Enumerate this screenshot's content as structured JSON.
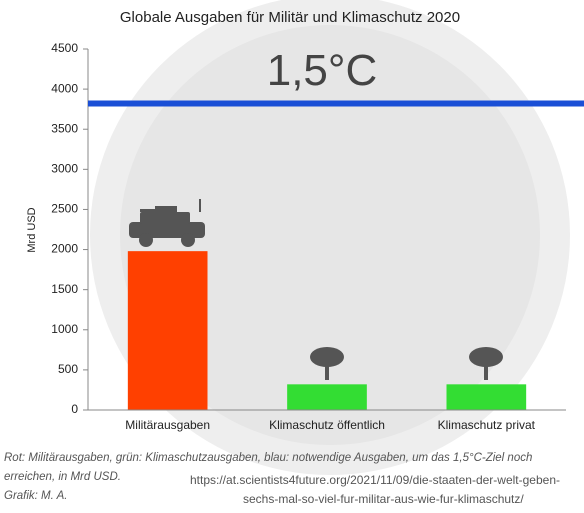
{
  "chart_data": {
    "type": "bar",
    "title": "Globale Ausgaben für Militär und Klimaschutz 2020",
    "y_label": "Mrd USD",
    "categories": [
      "Militärausgaben",
      "Klimaschutz öffentlich",
      "Klimaschutz privat"
    ],
    "values": [
      1980,
      320,
      320
    ],
    "colors": [
      "#ff4000",
      "#33dd33",
      "#33dd33"
    ],
    "ylim": [
      0,
      4500
    ],
    "yticks": [
      0,
      500,
      1000,
      1500,
      2000,
      2500,
      3000,
      3500,
      4000,
      4500
    ],
    "grid": false,
    "reference_line": {
      "value": 3820,
      "label": "1,5°C",
      "color": "#1a4fd6"
    }
  },
  "caption": [
    "Rot: Militärausgaben, grün: Klimaschutzausgaben, blau: notwendige Ausgaben, um das 1,5°C-Ziel noch",
    "erreichen, in Mrd USD.",
    "Grafik: M. A."
  ],
  "source": [
    "https://at.scientists4future.org/2021/11/09/die-staaten-der-welt-geben-",
    "sechs-mal-so-viel-fur-militar-aus-wie-fur-klimaschutz/"
  ]
}
